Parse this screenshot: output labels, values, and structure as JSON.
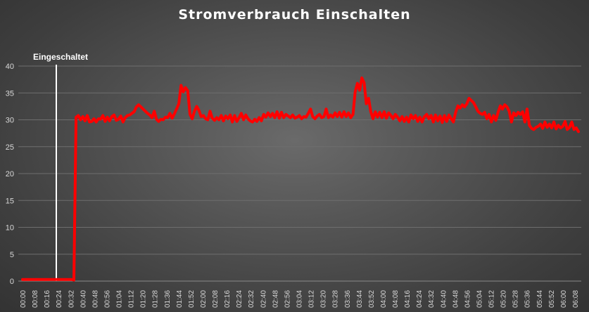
{
  "chart_data": {
    "type": "line",
    "title": "Stromverbrauch Einschalten",
    "xlabel": "",
    "ylabel": "",
    "ylim": [
      0,
      40
    ],
    "yticks": [
      0,
      5,
      10,
      15,
      20,
      25,
      30,
      35,
      40
    ],
    "grid": true,
    "x_tick_labels": [
      "00:00",
      "00:08",
      "00:16",
      "00:24",
      "00:32",
      "00:40",
      "00:48",
      "00:56",
      "01:04",
      "01:12",
      "01:20",
      "01:28",
      "01:36",
      "01:44",
      "01:52",
      "02:00",
      "02:08",
      "02:16",
      "02:24",
      "02:32",
      "02:40",
      "02:48",
      "02:56",
      "03:04",
      "03:12",
      "03:20",
      "03:28",
      "03:36",
      "03:44",
      "03:52",
      "04:00",
      "04:08",
      "04:16",
      "04:24",
      "04:32",
      "04:40",
      "04:48",
      "04:56",
      "05:04",
      "05:12",
      "05:20",
      "05:28",
      "05:36",
      "05:44",
      "05:52",
      "06:00",
      "06:08"
    ],
    "annotation": {
      "label": "Eingeschaltet",
      "x_index": 12
    },
    "series": [
      {
        "color": "#ff0000",
        "values": [
          0.3,
          0.3,
          0.3,
          0.3,
          0.3,
          0.3,
          0.3,
          0.3,
          0.3,
          0.3,
          0.3,
          0.3,
          0.3,
          0.3,
          0.3,
          0.3,
          0.3,
          0.3,
          0.3,
          0.3,
          0.3,
          0.3,
          0.3,
          0.2,
          30.5,
          30.8,
          30.0,
          30.6,
          29.8,
          30.8,
          29.6,
          29.7,
          30.2,
          29.6,
          30.2,
          30.1,
          30.8,
          29.7,
          30.5,
          29.8,
          30.6,
          30.9,
          29.9,
          30.1,
          30.7,
          29.6,
          30.4,
          30.8,
          30.9,
          31.2,
          31.5,
          32.4,
          32.8,
          32.4,
          32.0,
          31.6,
          31.2,
          30.9,
          30.4,
          31.6,
          30.1,
          29.7,
          30.1,
          30.0,
          30.5,
          30.4,
          31.2,
          30.3,
          31.1,
          32.0,
          33.0,
          36.4,
          35.2,
          36.0,
          35.4,
          31.0,
          30.2,
          31.6,
          32.5,
          31.8,
          30.6,
          30.8,
          30.2,
          30.0,
          31.6,
          30.3,
          29.9,
          30.4,
          30.0,
          30.8,
          29.8,
          30.7,
          30.2,
          30.9,
          29.6,
          30.8,
          29.7,
          30.4,
          31.2,
          30.0,
          30.9,
          30.2,
          29.8,
          29.6,
          30.1,
          29.7,
          30.4,
          29.8,
          31.0,
          30.5,
          31.3,
          30.6,
          31.2,
          30.4,
          31.5,
          30.3,
          31.4,
          30.4,
          31.0,
          30.7,
          30.4,
          30.9,
          30.3,
          30.5,
          30.8,
          30.2,
          30.6,
          30.5,
          31.2,
          32.0,
          30.6,
          30.2,
          30.7,
          31.0,
          30.4,
          30.6,
          32.0,
          30.4,
          30.9,
          30.5,
          31.3,
          30.6,
          31.4,
          30.5,
          31.5,
          30.6,
          31.3,
          30.4,
          31.0,
          35.2,
          36.8,
          35.5,
          37.8,
          36.9,
          33.0,
          34.0,
          31.5,
          30.2,
          31.5,
          30.5,
          31.4,
          30.4,
          31.5,
          30.3,
          31.3,
          30.8,
          30.2,
          31.0,
          30.5,
          29.8,
          30.6,
          29.7,
          30.5,
          29.6,
          30.9,
          30.2,
          30.8,
          29.7,
          30.5,
          29.6,
          30.6,
          31.0,
          30.2,
          30.8,
          29.6,
          30.9,
          29.8,
          30.7,
          29.5,
          30.8,
          29.7,
          30.9,
          30.2,
          29.6,
          31.4,
          32.6,
          32.2,
          32.8,
          32.4,
          33.0,
          34.0,
          33.6,
          33.2,
          32.4,
          31.6,
          31.2,
          31.0,
          31.4,
          30.2,
          31.0,
          29.6,
          30.8,
          29.9,
          31.4,
          32.6,
          32.0,
          32.8,
          32.4,
          31.6,
          29.6,
          31.3,
          30.8,
          31.4,
          31.0,
          31.5,
          29.6,
          32.0,
          29.0,
          28.4,
          28.2,
          28.6,
          28.8,
          29.2,
          28.4,
          29.6,
          28.6,
          29.2,
          28.5,
          29.6,
          28.3,
          29.0,
          28.5,
          28.8,
          29.7,
          28.2,
          28.6,
          29.6,
          28.2,
          28.5,
          27.8
        ]
      }
    ]
  }
}
